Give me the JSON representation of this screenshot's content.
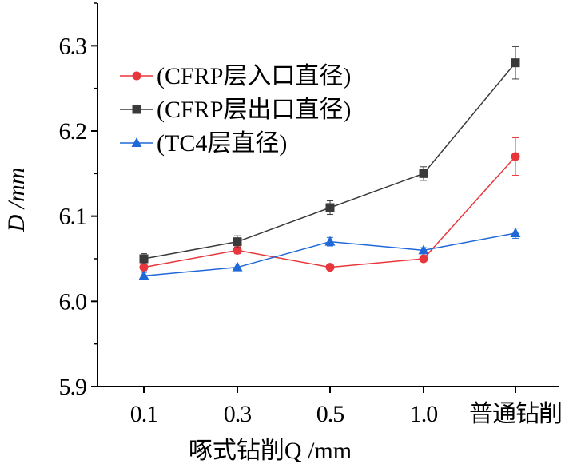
{
  "chart_data": {
    "type": "line",
    "categories": [
      "0.1",
      "0.3",
      "0.5",
      "1.0",
      "普通钻削"
    ],
    "xlabel": "啄式钻削Q /mm",
    "ylabel": "D /mm",
    "ylim": [
      5.9,
      6.35
    ],
    "yticks": [
      "5.9",
      "6.0",
      "6.1",
      "6.2",
      "6.3"
    ],
    "grid": false,
    "legend_position": "top-left",
    "series": [
      {
        "name": "(CFRP层入口直径)",
        "color": "#e8373c",
        "marker": "circle",
        "values": [
          6.04,
          6.06,
          6.04,
          6.05,
          6.17
        ],
        "errors": [
          0.004,
          0.004,
          0.003,
          0.003,
          0.022
        ]
      },
      {
        "name": "(CFRP层出口直径)",
        "color": "#3a3a3a",
        "marker": "square",
        "values": [
          6.05,
          6.07,
          6.11,
          6.15,
          6.28
        ],
        "errors": [
          0.006,
          0.007,
          0.008,
          0.008,
          0.019
        ]
      },
      {
        "name": "(TC4层直径)",
        "color": "#1f68d8",
        "marker": "triangle",
        "values": [
          6.03,
          6.04,
          6.07,
          6.06,
          6.08
        ],
        "errors": [
          0.004,
          0.004,
          0.005,
          0.003,
          0.006
        ]
      }
    ]
  }
}
